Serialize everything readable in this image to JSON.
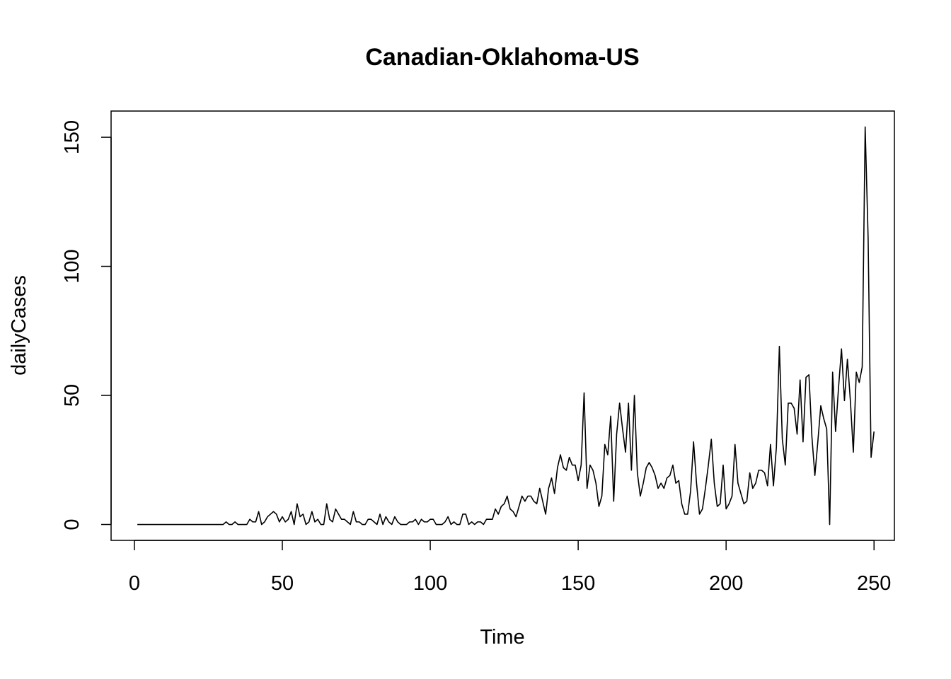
{
  "chart_data": {
    "type": "line",
    "title": "Canadian-Oklahoma-US",
    "xlabel": "Time",
    "ylabel": "dailyCases",
    "xlim": [
      -7.88,
      256.88
    ],
    "ylim": [
      -6.16,
      160.16
    ],
    "xticks": [
      0,
      50,
      100,
      150,
      200,
      250
    ],
    "yticks": [
      0,
      50,
      100,
      150
    ],
    "grid": false,
    "line_color": "#000000",
    "series": [
      {
        "x_start": 1,
        "values": [
          0,
          0,
          0,
          0,
          0,
          0,
          0,
          0,
          0,
          0,
          0,
          0,
          0,
          0,
          0,
          0,
          0,
          0,
          0,
          0,
          0,
          0,
          0,
          0,
          0,
          0,
          0,
          0,
          0,
          0,
          1,
          0,
          0,
          1,
          0,
          0,
          0,
          0,
          2,
          1,
          1,
          5,
          0,
          1,
          3,
          4,
          5,
          4,
          1,
          3,
          1,
          2,
          5,
          0,
          8,
          3,
          4,
          0,
          1,
          5,
          1,
          2,
          0,
          0,
          8,
          2,
          1,
          6,
          4,
          2,
          2,
          1,
          0,
          5,
          1,
          1,
          0,
          0,
          2,
          2,
          1,
          0,
          4,
          0,
          3,
          1,
          0,
          3,
          1,
          0,
          0,
          0,
          1,
          1,
          2,
          0,
          2,
          1,
          1,
          2,
          2,
          0,
          0,
          0,
          1,
          3,
          0,
          1,
          0,
          0,
          4,
          4,
          0,
          1,
          0,
          1,
          1,
          0,
          2,
          2,
          2,
          6,
          4,
          7,
          8,
          11,
          6,
          5,
          3,
          7,
          11,
          9,
          11,
          11,
          9,
          8,
          14,
          9,
          4,
          14,
          18,
          12,
          22,
          27,
          22,
          21,
          26,
          23,
          23,
          17,
          23,
          51,
          14,
          23,
          21,
          16,
          7,
          11,
          31,
          27,
          42,
          9,
          35,
          47,
          37,
          28,
          47,
          21,
          50,
          20,
          11,
          16,
          22,
          24,
          22,
          19,
          14,
          16,
          14,
          18,
          19,
          23,
          16,
          17,
          8,
          4,
          4,
          13,
          32,
          16,
          4,
          6,
          14,
          23,
          33,
          16,
          7,
          8,
          23,
          6,
          8,
          11,
          31,
          16,
          12,
          8,
          9,
          20,
          14,
          16,
          21,
          21,
          20,
          15,
          31,
          15,
          30,
          69,
          33,
          23,
          47,
          47,
          45,
          35,
          56,
          32,
          57,
          58,
          34,
          19,
          32,
          46,
          41,
          37,
          0,
          59,
          36,
          53,
          68,
          48,
          64,
          48,
          28,
          59,
          55,
          61,
          154,
          111,
          26,
          36
        ]
      }
    ]
  }
}
